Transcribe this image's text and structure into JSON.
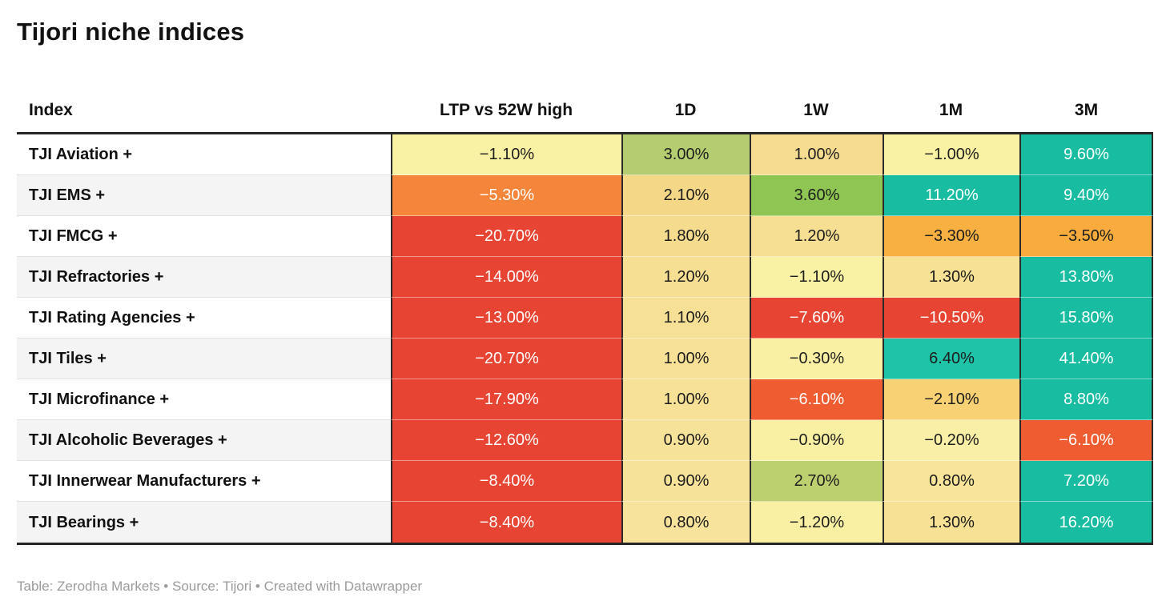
{
  "title": "Tijori niche indices",
  "footer": "Table: Zerodha Markets • Source: Tijori • Created with Datawrapper",
  "accent_colors": {
    "positive_strong": "#17bca1",
    "positive_mild": "#8ec553",
    "neutral": "#f9f1a3",
    "negative_mild": "#f9b042",
    "negative_strong": "#e84433",
    "border_dark": "#2b2b2b"
  },
  "chart_data": {
    "type": "table",
    "title": "Tijori niche indices",
    "columns": [
      "Index",
      "LTP vs 52W high",
      "1D",
      "1W",
      "1M",
      "3M"
    ],
    "rows": [
      {
        "index": "TJI Aviation +",
        "cells": [
          {
            "value": "−1.10%",
            "bg": "#f9f1a3",
            "text": "#1d1d1d"
          },
          {
            "value": "3.00%",
            "bg": "#b4cd70",
            "text": "#1d1d1d"
          },
          {
            "value": "1.00%",
            "bg": "#f6dc90",
            "text": "#1d1d1d"
          },
          {
            "value": "−1.00%",
            "bg": "#f9f1a3",
            "text": "#1d1d1d"
          },
          {
            "value": "9.60%",
            "bg": "#17bca1",
            "text": "#ffffff"
          }
        ]
      },
      {
        "index": "TJI EMS +",
        "cells": [
          {
            "value": "−5.30%",
            "bg": "#f5853b",
            "text": "#ffffff"
          },
          {
            "value": "2.10%",
            "bg": "#f4d887",
            "text": "#1d1d1d"
          },
          {
            "value": "3.60%",
            "bg": "#8ec553",
            "text": "#1d1d1d"
          },
          {
            "value": "11.20%",
            "bg": "#17bca1",
            "text": "#ffffff"
          },
          {
            "value": "9.40%",
            "bg": "#17bca1",
            "text": "#ffffff"
          }
        ]
      },
      {
        "index": "TJI FMCG +",
        "cells": [
          {
            "value": "−20.70%",
            "bg": "#e84433",
            "text": "#ffffff"
          },
          {
            "value": "1.80%",
            "bg": "#f5db8d",
            "text": "#1d1d1d"
          },
          {
            "value": "1.20%",
            "bg": "#f6df92",
            "text": "#1d1d1d"
          },
          {
            "value": "−3.30%",
            "bg": "#f9b042",
            "text": "#1d1d1d"
          },
          {
            "value": "−3.50%",
            "bg": "#f9ac3d",
            "text": "#1d1d1d"
          }
        ]
      },
      {
        "index": "TJI Refractories +",
        "cells": [
          {
            "value": "−14.00%",
            "bg": "#e84433",
            "text": "#ffffff"
          },
          {
            "value": "1.20%",
            "bg": "#f6df92",
            "text": "#1d1d1d"
          },
          {
            "value": "−1.10%",
            "bg": "#f9f1a3",
            "text": "#1d1d1d"
          },
          {
            "value": "1.30%",
            "bg": "#f7e194",
            "text": "#1d1d1d"
          },
          {
            "value": "13.80%",
            "bg": "#17bca1",
            "text": "#ffffff"
          }
        ]
      },
      {
        "index": "TJI Rating Agencies +",
        "cells": [
          {
            "value": "−13.00%",
            "bg": "#e84433",
            "text": "#ffffff"
          },
          {
            "value": "1.10%",
            "bg": "#f6e095",
            "text": "#1d1d1d"
          },
          {
            "value": "−7.60%",
            "bg": "#e84433",
            "text": "#ffffff"
          },
          {
            "value": "−10.50%",
            "bg": "#e84433",
            "text": "#ffffff"
          },
          {
            "value": "15.80%",
            "bg": "#17bca1",
            "text": "#ffffff"
          }
        ]
      },
      {
        "index": "TJI Tiles +",
        "cells": [
          {
            "value": "−20.70%",
            "bg": "#e84433",
            "text": "#ffffff"
          },
          {
            "value": "1.00%",
            "bg": "#f6e197",
            "text": "#1d1d1d"
          },
          {
            "value": "−0.30%",
            "bg": "#f9f0a4",
            "text": "#1d1d1d"
          },
          {
            "value": "6.40%",
            "bg": "#1fc3a8",
            "text": "#1d1d1d"
          },
          {
            "value": "41.40%",
            "bg": "#17bca1",
            "text": "#ffffff"
          }
        ]
      },
      {
        "index": "TJI Microfinance +",
        "cells": [
          {
            "value": "−17.90%",
            "bg": "#e84433",
            "text": "#ffffff"
          },
          {
            "value": "1.00%",
            "bg": "#f6e197",
            "text": "#1d1d1d"
          },
          {
            "value": "−6.10%",
            "bg": "#f05c31",
            "text": "#ffffff"
          },
          {
            "value": "−2.10%",
            "bg": "#f7d173",
            "text": "#1d1d1d"
          },
          {
            "value": "8.80%",
            "bg": "#17bca1",
            "text": "#ffffff"
          }
        ]
      },
      {
        "index": "TJI Alcoholic Beverages +",
        "cells": [
          {
            "value": "−12.60%",
            "bg": "#e84433",
            "text": "#ffffff"
          },
          {
            "value": "0.90%",
            "bg": "#f7e29a",
            "text": "#1d1d1d"
          },
          {
            "value": "−0.90%",
            "bg": "#f9f0a4",
            "text": "#1d1d1d"
          },
          {
            "value": "−0.20%",
            "bg": "#f9efa6",
            "text": "#1d1d1d"
          },
          {
            "value": "−6.10%",
            "bg": "#f05c31",
            "text": "#ffffff"
          }
        ]
      },
      {
        "index": "TJI Innerwear Manufacturers +",
        "cells": [
          {
            "value": "−8.40%",
            "bg": "#e84433",
            "text": "#ffffff"
          },
          {
            "value": "0.90%",
            "bg": "#f7e29a",
            "text": "#1d1d1d"
          },
          {
            "value": "2.70%",
            "bg": "#bdd06f",
            "text": "#1d1d1d"
          },
          {
            "value": "0.80%",
            "bg": "#f8e59a",
            "text": "#1d1d1d"
          },
          {
            "value": "7.20%",
            "bg": "#17bca1",
            "text": "#ffffff"
          }
        ]
      },
      {
        "index": "TJI Bearings +",
        "cells": [
          {
            "value": "−8.40%",
            "bg": "#e84433",
            "text": "#ffffff"
          },
          {
            "value": "0.80%",
            "bg": "#f7e39c",
            "text": "#1d1d1d"
          },
          {
            "value": "−1.20%",
            "bg": "#f9f0a4",
            "text": "#1d1d1d"
          },
          {
            "value": "1.30%",
            "bg": "#f7e194",
            "text": "#1d1d1d"
          },
          {
            "value": "16.20%",
            "bg": "#17bca1",
            "text": "#ffffff"
          }
        ]
      }
    ]
  }
}
